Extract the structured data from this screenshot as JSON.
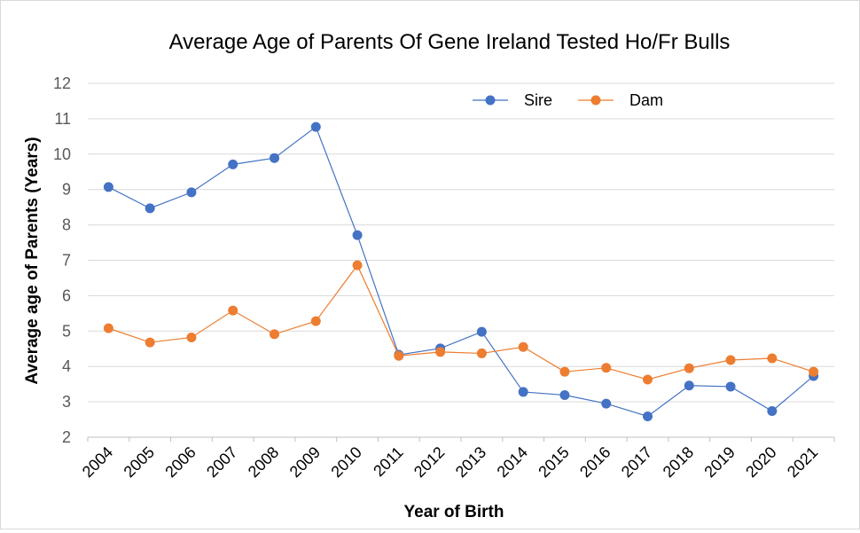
{
  "chart_data": {
    "type": "line",
    "title": "Average Age of Parents Of Gene Ireland Tested Ho/Fr Bulls",
    "xlabel": "Year of Birth",
    "ylabel": "Average age of Parents (Years)",
    "ylim": [
      2,
      12
    ],
    "yticks": [
      "2",
      "3",
      "4",
      "5",
      "6",
      "7",
      "8",
      "9",
      "10",
      "11",
      "12"
    ],
    "categories": [
      "2004",
      "2005",
      "2006",
      "2007",
      "2008",
      "2009",
      "2010",
      "2011",
      "2012",
      "2013",
      "2014",
      "2015",
      "2016",
      "2017",
      "2018",
      "2019",
      "2020",
      "2021"
    ],
    "grid": true,
    "legend_position": "top-right",
    "series": [
      {
        "name": "Sire",
        "color": "#4472c4",
        "values": [
          9.07,
          8.47,
          8.92,
          9.71,
          9.89,
          10.77,
          7.71,
          4.33,
          4.51,
          4.98,
          3.28,
          3.19,
          2.95,
          2.59,
          3.46,
          3.43,
          2.74,
          3.73
        ]
      },
      {
        "name": "Dam",
        "color": "#ed7d31",
        "values": [
          5.08,
          4.68,
          4.82,
          5.58,
          4.91,
          5.28,
          6.86,
          4.3,
          4.41,
          4.37,
          4.55,
          3.85,
          3.96,
          3.63,
          3.95,
          4.18,
          4.23,
          3.85
        ]
      }
    ]
  }
}
